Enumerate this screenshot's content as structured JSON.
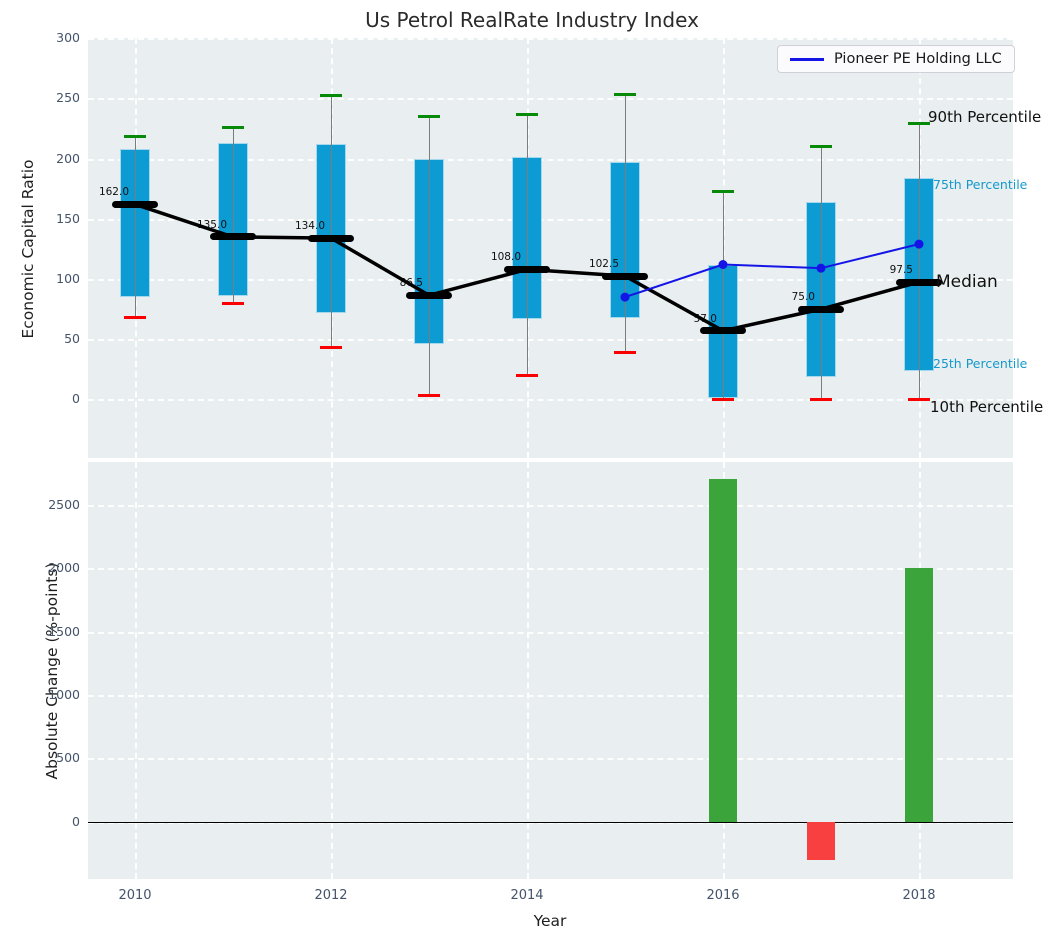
{
  "title": "Us Petrol RealRate Industry Index",
  "legend": {
    "label": "Pioneer PE Holding LLC"
  },
  "colors": {
    "box_fill": "#0d9bd3",
    "box_edge": "#a5d8ec",
    "whisker": "#7c7c7c",
    "cap_high": "#078a07",
    "cap_low": "#fa0000",
    "median_marker": "#000000",
    "median_line": "#000000",
    "company_line": "#1414e6",
    "bar_positive": "#3ba43b",
    "bar_negative": "#f94040",
    "panel_bg": "#e9eef0",
    "tick_text": "#44546a",
    "annotation_cyan": "#1599cc",
    "annotation_black": "#111111"
  },
  "chart_data": [
    {
      "type": "boxplot",
      "title": "Us Petrol RealRate Industry Index",
      "ylabel": "Economic Capital Ratio",
      "ylim": [
        -48.6,
        300.1
      ],
      "yticks": [
        0,
        50,
        100,
        150,
        200,
        250,
        300
      ],
      "grid": true,
      "legend_position": "upper right",
      "years": [
        2010,
        2011,
        2012,
        2013,
        2014,
        2015,
        2016,
        2017,
        2018
      ],
      "boxes": [
        {
          "year": 2010,
          "p90": 218,
          "p75": 208,
          "median": 162,
          "p25": 85,
          "p10": 68
        },
        {
          "year": 2011,
          "p90": 226,
          "p75": 213,
          "median": 135,
          "p25": 86,
          "p10": 80
        },
        {
          "year": 2012,
          "p90": 252,
          "p75": 212,
          "median": 134,
          "p25": 72,
          "p10": 43
        },
        {
          "year": 2013,
          "p90": 235,
          "p75": 200,
          "median": 86.5,
          "p25": 46,
          "p10": 3
        },
        {
          "year": 2014,
          "p90": 237,
          "p75": 201,
          "median": 108,
          "p25": 67,
          "p10": 20
        },
        {
          "year": 2015,
          "p90": 253,
          "p75": 197,
          "median": 102.5,
          "p25": 68,
          "p10": 39
        },
        {
          "year": 2016,
          "p90": 173,
          "p75": 112,
          "median": 57,
          "p25": 1,
          "p10": 0
        },
        {
          "year": 2017,
          "p90": 210,
          "p75": 164,
          "median": 75,
          "p25": 19,
          "p10": 0
        },
        {
          "year": 2018,
          "p90": 229,
          "p75": 184,
          "median": 97.5,
          "p25": 24,
          "p10": 0
        }
      ],
      "median_labels": [
        "162.0",
        "135.0",
        "134.0",
        "86.5",
        "108.0",
        "102.5",
        "57.0",
        "75.0",
        "97.5"
      ],
      "series": [
        {
          "name": "Pioneer PE Holding LLC",
          "x": [
            2015,
            2016,
            2017,
            2018
          ],
          "y": [
            85,
            112,
            109,
            129
          ]
        }
      ],
      "annotations": [
        {
          "text": "90th Percentile",
          "v": 234,
          "x": 928,
          "size": 15,
          "color_key": "annotation_black"
        },
        {
          "text": "75th Percentile",
          "v": 178,
          "x": 933,
          "size": 12.5,
          "color_key": "annotation_cyan"
        },
        {
          "text": "Median",
          "v": 97,
          "x": 936,
          "size": 17,
          "color_key": "annotation_black"
        },
        {
          "text": "25th Percentile",
          "v": 30,
          "x": 933,
          "size": 12.5,
          "color_key": "annotation_cyan"
        },
        {
          "text": "10th Percentile",
          "v": -6.5,
          "x": 930,
          "size": 15,
          "color_key": "annotation_black"
        }
      ]
    },
    {
      "type": "bar",
      "ylabel": "Absolute Change (%-points)",
      "xlabel": "Year",
      "ylim": [
        -449,
        2835
      ],
      "yticks": [
        0,
        500,
        1000,
        1500,
        2000,
        2500
      ],
      "grid": true,
      "categories": [
        2016,
        2017,
        2018
      ],
      "values": [
        2700,
        -300,
        2000
      ],
      "bars": [
        {
          "year": 2016,
          "value": 2700
        },
        {
          "year": 2017,
          "value": -300
        },
        {
          "year": 2018,
          "value": 2000
        }
      ]
    }
  ],
  "xticks": [
    "2010",
    "2012",
    "2014",
    "2016",
    "2018"
  ],
  "xtick_years": [
    2010,
    2012,
    2014,
    2016,
    2018
  ],
  "xlabel": "Year"
}
